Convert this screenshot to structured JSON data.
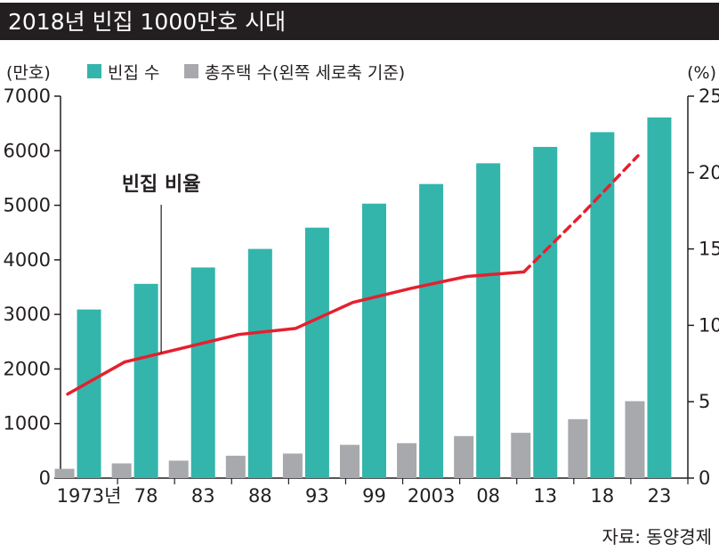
{
  "chart_data": {
    "type": "bar",
    "title": "2018년 빈집 1000만호 시대",
    "categories": [
      "1973년",
      "78",
      "83",
      "88",
      "93",
      "99",
      "2003",
      "08",
      "13",
      "18",
      "23"
    ],
    "series": [
      {
        "name": "빈집 수",
        "axis": "left",
        "type": "bar",
        "color": "#33b5ac",
        "values": [
          3090,
          3560,
          3860,
          4200,
          4590,
          5030,
          5390,
          5770,
          6070,
          6340,
          6610
        ]
      },
      {
        "name": "총주택 수(왼쪽 세로축 기준)",
        "axis": "left",
        "type": "bar",
        "color": "#a7a9ac",
        "values": [
          170,
          270,
          320,
          410,
          450,
          610,
          640,
          770,
          830,
          1080,
          1410
        ]
      },
      {
        "name": "빈집 비율",
        "axis": "right",
        "type": "line",
        "color": "#e5202e",
        "projected_from_index": 8,
        "values": [
          5.5,
          7.6,
          8.5,
          9.4,
          9.8,
          11.5,
          12.4,
          13.2,
          13.5,
          17.2,
          21.1
        ]
      }
    ],
    "left_axis": {
      "unit_label": "(만호)",
      "range": [
        0,
        7000
      ],
      "ticks": [
        0,
        1000,
        2000,
        3000,
        4000,
        5000,
        6000,
        7000
      ],
      "tick_labels": [
        "0",
        "1000",
        "2000",
        "3000",
        "4000",
        "5000",
        "6000",
        "7000"
      ]
    },
    "right_axis": {
      "unit_label": "(%)",
      "range": [
        0,
        25
      ],
      "ticks": [
        0,
        5,
        10,
        15,
        20,
        25
      ],
      "tick_labels": [
        "0",
        "5",
        "10",
        "15",
        "20",
        "25"
      ]
    },
    "line_annotation": "빈집 비율",
    "source": "자료: 동양경제",
    "grid": false,
    "legend_placement": "top-left",
    "colors": {
      "title_bg": "#231f20",
      "axis": "#231f20",
      "text": "#231f20"
    }
  }
}
